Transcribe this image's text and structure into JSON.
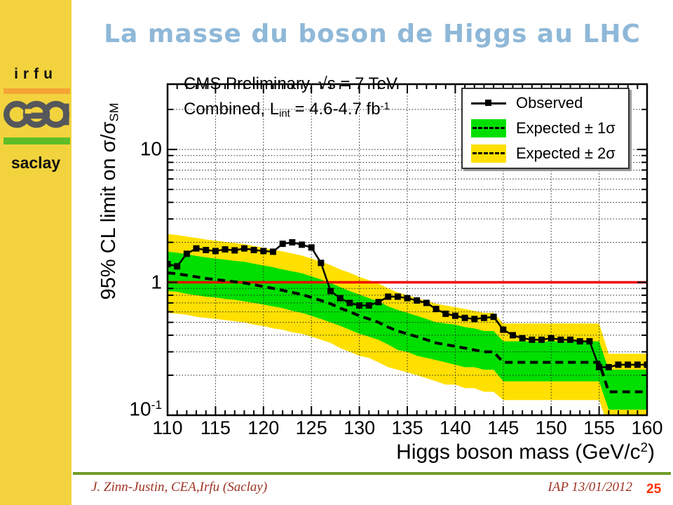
{
  "slide": {
    "title": "La masse du boson de Higgs au LHC",
    "title_color": "#8FB8D8",
    "page_number": "25",
    "footer": {
      "left": "J. Zinn-Justin, CEA,Irfu (Saclay)",
      "right": "IAP 13/01/2012",
      "text_color": "#9E3222",
      "page_number_color": "#FF3000",
      "rule_color": "#6F9C28"
    }
  },
  "sidebar": {
    "bg_color": "#F2D33E",
    "lab_name": "irfu",
    "logo_text": "cea",
    "site_name": "saclay",
    "orange_bar_color": "#F4A434",
    "green_bar_color": "#5EBE28"
  },
  "chart_data": {
    "type": "line",
    "annotations": {
      "line1": "CMS Preliminary, √s = 7 TeV",
      "line2_pre": "Combined, L",
      "line2_sub": "int",
      "line2_mid": " = 4.6-4.7 fb",
      "line2_sup": "-1"
    },
    "xlabel_pre": "Higgs boson mass (GeV/c",
    "xlabel_sup": "2",
    "xlabel_post": ")",
    "ylabel_pre": "95% CL limit on σ/σ",
    "ylabel_sub": "SM",
    "xlim": [
      110,
      160
    ],
    "ylim": [
      0.1,
      31
    ],
    "yscale": "log",
    "grid": true,
    "x_major_ticks": [
      110,
      115,
      120,
      125,
      130,
      135,
      140,
      145,
      150,
      155,
      160
    ],
    "x_minor_step": 1,
    "y_major_ticks": [
      {
        "label": "10",
        "sup": "",
        "value": 10
      },
      {
        "label": "1",
        "sup": "",
        "value": 1
      },
      {
        "label": "10",
        "sup": "-1",
        "value": 0.1
      }
    ],
    "y_grid_values": [
      0.2,
      0.3,
      0.4,
      0.5,
      0.6,
      0.7,
      0.8,
      0.9,
      1,
      2,
      3,
      4,
      5,
      6,
      7,
      8,
      9,
      10,
      20
    ],
    "reference_line": {
      "value": 1,
      "color": "#F10000"
    },
    "x": [
      110,
      111,
      112,
      113,
      114,
      115,
      116,
      117,
      118,
      119,
      120,
      121,
      122,
      123,
      124,
      125,
      126,
      127,
      128,
      129,
      130,
      131,
      132,
      133,
      134,
      135,
      136,
      137,
      138,
      139,
      140,
      141,
      142,
      143,
      144,
      145,
      146,
      147,
      148,
      149,
      150,
      151,
      152,
      153,
      154,
      155,
      156,
      157,
      158,
      159,
      160
    ],
    "series": [
      {
        "name": "Observed",
        "style": "solid-squares",
        "color": "#000000",
        "values": [
          1.37,
          1.32,
          1.64,
          1.8,
          1.75,
          1.72,
          1.77,
          1.74,
          1.8,
          1.75,
          1.72,
          1.7,
          1.95,
          2.0,
          1.92,
          1.83,
          1.4,
          0.86,
          0.76,
          0.7,
          0.67,
          0.67,
          0.71,
          0.78,
          0.78,
          0.76,
          0.73,
          0.7,
          0.63,
          0.58,
          0.56,
          0.54,
          0.53,
          0.54,
          0.55,
          0.44,
          0.4,
          0.38,
          0.37,
          0.37,
          0.38,
          0.37,
          0.37,
          0.36,
          0.36,
          0.23,
          0.23,
          0.24,
          0.24,
          0.24,
          0.24
        ]
      },
      {
        "name": "Expected",
        "style": "dashed",
        "color": "#000000",
        "values": [
          1.18,
          1.16,
          1.13,
          1.1,
          1.07,
          1.05,
          1.03,
          1.01,
          0.99,
          0.96,
          0.93,
          0.9,
          0.87,
          0.84,
          0.81,
          0.77,
          0.73,
          0.69,
          0.64,
          0.6,
          0.56,
          0.53,
          0.5,
          0.46,
          0.43,
          0.41,
          0.39,
          0.37,
          0.35,
          0.34,
          0.33,
          0.32,
          0.31,
          0.3,
          0.3,
          0.25,
          0.25,
          0.25,
          0.25,
          0.25,
          0.25,
          0.25,
          0.25,
          0.25,
          0.25,
          0.25,
          0.15,
          0.15,
          0.15,
          0.15,
          0.15
        ]
      }
    ],
    "bands": [
      {
        "name": "expected-2sigma-band",
        "color": "#FFE000",
        "hi": [
          2.31,
          2.27,
          2.21,
          2.16,
          2.1,
          2.06,
          2.02,
          1.98,
          1.94,
          1.88,
          1.82,
          1.76,
          1.71,
          1.65,
          1.59,
          1.51,
          1.43,
          1.35,
          1.25,
          1.18,
          1.1,
          1.04,
          0.98,
          0.9,
          0.84,
          0.8,
          0.76,
          0.73,
          0.69,
          0.67,
          0.65,
          0.63,
          0.61,
          0.59,
          0.59,
          0.49,
          0.49,
          0.49,
          0.49,
          0.49,
          0.49,
          0.49,
          0.49,
          0.49,
          0.49,
          0.49,
          0.29,
          0.29,
          0.29,
          0.29,
          0.29
        ],
        "lo": [
          0.59,
          0.58,
          0.57,
          0.55,
          0.54,
          0.53,
          0.52,
          0.51,
          0.5,
          0.48,
          0.47,
          0.45,
          0.44,
          0.42,
          0.41,
          0.39,
          0.37,
          0.35,
          0.32,
          0.3,
          0.28,
          0.27,
          0.25,
          0.23,
          0.22,
          0.21,
          0.2,
          0.19,
          0.18,
          0.17,
          0.17,
          0.16,
          0.16,
          0.15,
          0.15,
          0.13,
          0.13,
          0.13,
          0.13,
          0.13,
          0.13,
          0.13,
          0.13,
          0.13,
          0.13,
          0.13,
          0.08,
          0.08,
          0.08,
          0.08,
          0.08
        ]
      },
      {
        "name": "expected-1sigma-band",
        "color": "#00DF00",
        "hi": [
          1.7,
          1.67,
          1.63,
          1.58,
          1.54,
          1.51,
          1.48,
          1.45,
          1.43,
          1.38,
          1.34,
          1.3,
          1.25,
          1.21,
          1.17,
          1.11,
          1.05,
          0.99,
          0.92,
          0.86,
          0.81,
          0.76,
          0.72,
          0.66,
          0.62,
          0.59,
          0.56,
          0.53,
          0.5,
          0.49,
          0.48,
          0.46,
          0.45,
          0.43,
          0.43,
          0.36,
          0.36,
          0.36,
          0.36,
          0.36,
          0.36,
          0.36,
          0.36,
          0.36,
          0.36,
          0.36,
          0.22,
          0.22,
          0.22,
          0.22,
          0.22
        ],
        "lo": [
          0.86,
          0.85,
          0.82,
          0.8,
          0.78,
          0.77,
          0.75,
          0.74,
          0.72,
          0.7,
          0.68,
          0.66,
          0.64,
          0.61,
          0.59,
          0.56,
          0.53,
          0.5,
          0.47,
          0.44,
          0.41,
          0.39,
          0.37,
          0.34,
          0.31,
          0.3,
          0.28,
          0.27,
          0.26,
          0.25,
          0.24,
          0.23,
          0.23,
          0.22,
          0.22,
          0.18,
          0.18,
          0.18,
          0.18,
          0.18,
          0.18,
          0.18,
          0.18,
          0.18,
          0.18,
          0.18,
          0.11,
          0.11,
          0.11,
          0.11,
          0.11
        ]
      }
    ],
    "legend": [
      {
        "label": "Observed",
        "swatch": "line-square"
      },
      {
        "label": "Expected ± 1σ",
        "swatch": "green-band"
      },
      {
        "label": "Expected ± 2σ",
        "swatch": "yellow-band"
      }
    ],
    "legend_position": "top-right"
  }
}
